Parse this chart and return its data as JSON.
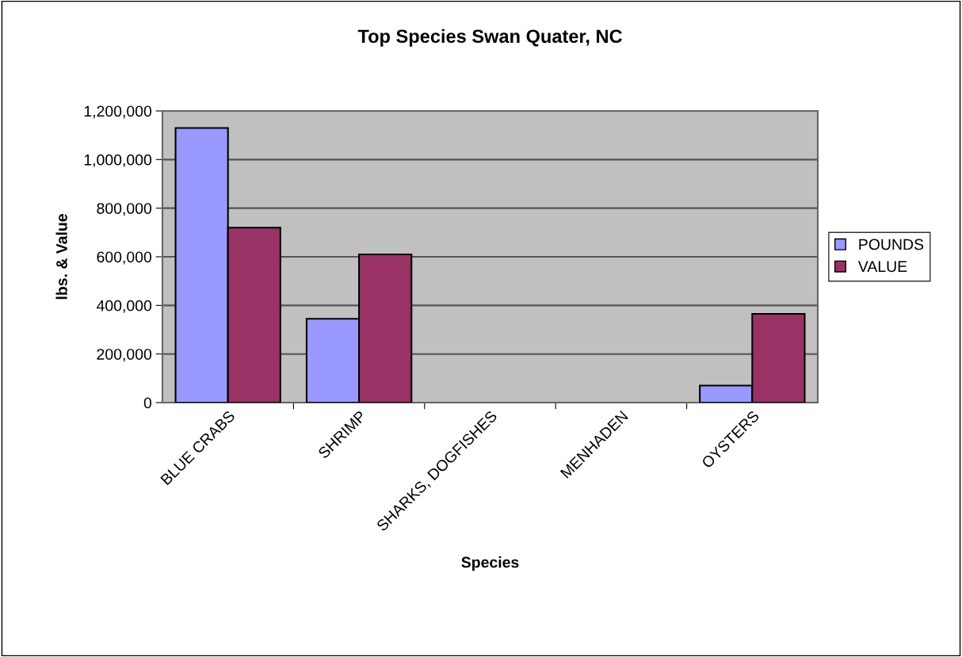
{
  "chart_data": {
    "type": "bar",
    "title": "Top Species Swan Quater, NC",
    "xlabel": "Species",
    "ylabel": "lbs. & Value",
    "categories": [
      "BLUE CRABS",
      "SHRIMP",
      "SHARKS, DOGFISHES",
      "MENHADEN",
      "OYSTERS"
    ],
    "series": [
      {
        "name": "POUNDS",
        "color": "#9999ff",
        "values": [
          1130000,
          345000,
          null,
          null,
          70000
        ]
      },
      {
        "name": "VALUE",
        "color": "#993366",
        "values": [
          720000,
          610000,
          null,
          null,
          365000
        ]
      }
    ],
    "ylim": [
      0,
      1200000
    ],
    "yticks": [
      0,
      {
        "value": 200000,
        "label": "200,000"
      },
      {
        "value": 400000,
        "label": "400,000"
      },
      {
        "value": 600000,
        "label": "600,000"
      },
      {
        "value": 800000,
        "label": "800,000"
      },
      {
        "value": 1000000,
        "label": "1,000,000"
      },
      {
        "value": 1200000,
        "label": "1,200,000"
      }
    ],
    "grid": "y",
    "legend": "right"
  }
}
